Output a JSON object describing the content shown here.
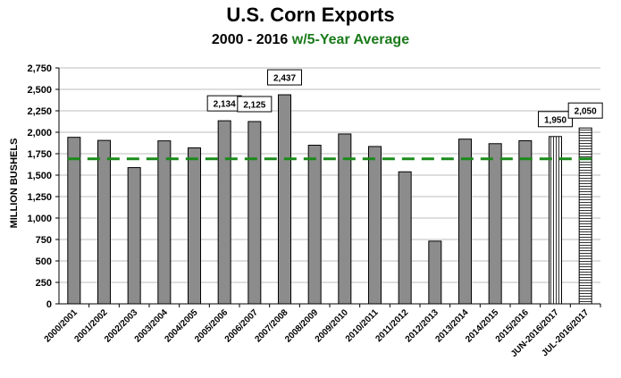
{
  "chart_data": {
    "type": "bar",
    "title": "U.S. Corn Exports",
    "subtitle_main": "2000 - 2016",
    "subtitle_accent": "w/5-Year Average",
    "ylabel": "MILLION BUSHELS",
    "xlabel": "",
    "ylim": [
      0,
      2750
    ],
    "ytick_step": 250,
    "categories": [
      "2000/2001",
      "2001/2002",
      "2002/2003",
      "2003/2004",
      "2004/2005",
      "2005/2006",
      "2006/2007",
      "2007/2008",
      "2008/2009",
      "2009/2010",
      "2010/2011",
      "2011/2012",
      "2012/2013",
      "2013/2014",
      "2014/2015",
      "2015/2016",
      "JUN-2016/2017",
      "JUL-2016/2017"
    ],
    "values": [
      1941,
      1905,
      1588,
      1900,
      1818,
      2134,
      2125,
      2437,
      1849,
      1980,
      1834,
      1539,
      731,
      1920,
      1867,
      1901,
      1950,
      2050
    ],
    "data_labels": {
      "5": "2,134",
      "6": "2,125",
      "7": "2,437",
      "16": "1,950",
      "17": "2,050"
    },
    "bar_styles": [
      "solid",
      "solid",
      "solid",
      "solid",
      "solid",
      "solid",
      "solid",
      "solid",
      "solid",
      "solid",
      "solid",
      "solid",
      "solid",
      "solid",
      "solid",
      "solid",
      "vertical-stripes",
      "horizontal-stripes"
    ],
    "average_line": {
      "value": 1690,
      "color": "#1a8a1a",
      "style": "dashed"
    },
    "colors": {
      "bar_fill": "#8c8c8c",
      "bar_stroke": "#000000",
      "grid": "#bdbdbd"
    },
    "grid": true,
    "legend": "none"
  }
}
